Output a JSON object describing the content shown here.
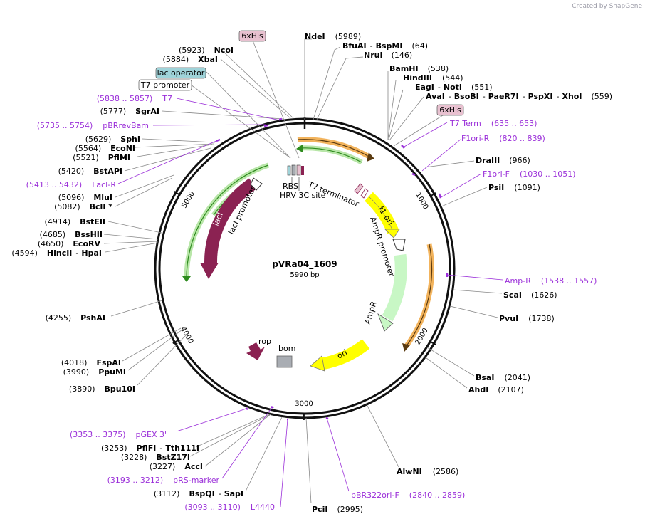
{
  "watermark": "Created by SnapGene",
  "plasmid": {
    "name": "pVRa04_1609",
    "size_label": "5990 bp",
    "length": 5990
  },
  "ticks": [
    {
      "pos": 1000,
      "label": "1000"
    },
    {
      "pos": 2000,
      "label": "2000"
    },
    {
      "pos": 3000,
      "label": "3000"
    },
    {
      "pos": 4000,
      "label": "4000"
    },
    {
      "pos": 5000,
      "label": "5000"
    }
  ],
  "sites": {
    "ndei": {
      "name": "NdeI",
      "pos": "(5989)"
    },
    "bfuai": {
      "name": "BfuAI",
      "name2": "BspMI",
      "pos": "(64)"
    },
    "nrui": {
      "name": "NruI",
      "pos": "(146)"
    },
    "bamhi": {
      "name": "BamHI",
      "pos": "(538)"
    },
    "hindiii": {
      "name": "HindIII",
      "pos": "(544)"
    },
    "eagi": {
      "name": "EagI",
      "name2": "NotI",
      "pos": "(551)"
    },
    "avai": {
      "name": "AvaI",
      "name2": "BsoBI",
      "name3": "PaeR7I",
      "name4": "PspXI",
      "name5": "XhoI",
      "pos": "(559)"
    },
    "draiii": {
      "name": "DraIII",
      "pos": "(966)"
    },
    "psii": {
      "name": "PsiI",
      "pos": "(1091)"
    },
    "scai": {
      "name": "ScaI",
      "pos": "(1626)"
    },
    "pvui": {
      "name": "PvuI",
      "pos": "(1738)"
    },
    "bsai": {
      "name": "BsaI",
      "pos": "(2041)"
    },
    "ahdi": {
      "name": "AhdI",
      "pos": "(2107)"
    },
    "alwni": {
      "name": "AlwNI",
      "pos": "(2586)"
    },
    "pcii": {
      "name": "PciI",
      "pos": "(2995)"
    },
    "bspqi": {
      "name": "BspQI",
      "name2": "SapI",
      "pos": "(3112)"
    },
    "acci": {
      "name": "AccI",
      "pos": "(3227)"
    },
    "bstz17i": {
      "name": "BstZ17I",
      "pos": "(3228)"
    },
    "pflfi": {
      "name": "PflFI",
      "name2": "Tth111I",
      "pos": "(3253)"
    },
    "bpu10i": {
      "name": "Bpu10I",
      "pos": "(3890)"
    },
    "ppumi": {
      "name": "PpuMI",
      "pos": "(3990)"
    },
    "fspai": {
      "name": "FspAI",
      "pos": "(4018)"
    },
    "pshai": {
      "name": "PshAI",
      "pos": "(4255)"
    },
    "hincii": {
      "name": "HincII",
      "name2": "HpaI",
      "pos": "(4594)"
    },
    "ecorv": {
      "name": "EcoRV",
      "pos": "(4650)"
    },
    "bsshii": {
      "name": "BssHII",
      "pos": "(4685)"
    },
    "bsteii": {
      "name": "BstEII",
      "pos": "(4914)"
    },
    "bcli": {
      "name": "BclI *",
      "pos": "(5082)"
    },
    "mlui": {
      "name": "MluI",
      "pos": "(5096)"
    },
    "bstapi": {
      "name": "BstAPI",
      "pos": "(5420)"
    },
    "pflmi": {
      "name": "PflMI",
      "pos": "(5521)"
    },
    "econi": {
      "name": "EcoNI",
      "pos": "(5564)"
    },
    "sphi": {
      "name": "SphI",
      "pos": "(5629)"
    },
    "sgrai": {
      "name": "SgrAI",
      "pos": "(5777)"
    },
    "xbai": {
      "name": "XbaI",
      "pos": "(5884)"
    },
    "ncoi": {
      "name": "NcoI",
      "pos": "(5923)"
    }
  },
  "primers": {
    "t7term": {
      "name": "T7 Term",
      "range": "(635 .. 653)"
    },
    "f1ori_r": {
      "name": "F1ori-R",
      "range": "(820 .. 839)"
    },
    "f1ori_f": {
      "name": "F1ori-F",
      "range": "(1030 .. 1051)"
    },
    "ampr": {
      "name": "Amp-R",
      "range": "(1538 .. 1557)"
    },
    "pbr322ori_f": {
      "name": "pBR322ori-F",
      "range": "(2840 .. 2859)"
    },
    "l4440": {
      "name": "L4440",
      "range": "(3093 .. 3110)"
    },
    "prs_marker": {
      "name": "pRS-marker",
      "range": "(3193 .. 3212)"
    },
    "pgex3": {
      "name": "pGEX 3'",
      "range": "(3353 .. 3375)"
    },
    "laci_r": {
      "name": "LacI-R",
      "range": "(5413 .. 5432)"
    },
    "pbrrevbam": {
      "name": "pBRrevBam",
      "range": "(5735 .. 5754)"
    },
    "t7": {
      "name": "T7",
      "range": "(5838 .. 5857)"
    }
  },
  "boxed": {
    "his_top": "6xHis",
    "lac_operator": "lac operator",
    "t7_promoter": "T7 promoter",
    "his_right": "6xHis"
  },
  "features": {
    "laci": "lacI",
    "laci_promoter": "lacI promoter",
    "f1_ori": "f1 ori",
    "ampr_promoter": "AmpR promoter",
    "ampr": "AmpR",
    "ori": "ori",
    "rop": "rop",
    "bom": "bom",
    "rbs": "RBS",
    "hrv": "HRV 3C site",
    "t7_terminator": "T7 terminator"
  },
  "colors": {
    "backbone": "#111111",
    "primer": "#9b30d9",
    "laci": "#8b2252",
    "f1ori": "#ffff00",
    "ampr": "#c8f7c5",
    "his_box": "#e8c1d0",
    "lacop_box": "#9fd3d9",
    "orange": "#f2b35c",
    "green": "#2e8b1e"
  }
}
